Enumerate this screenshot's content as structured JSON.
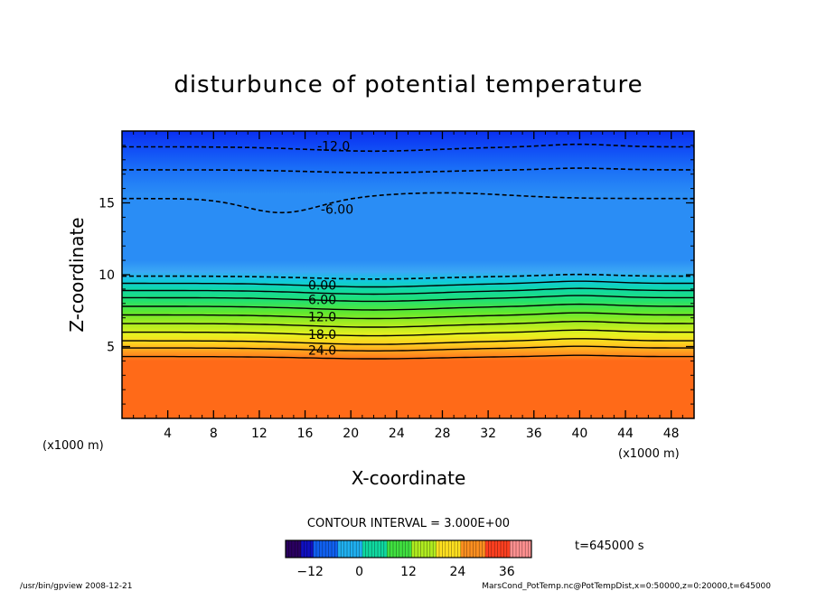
{
  "chart_data": {
    "type": "heatmap",
    "title": "disturbunce of potential temperature",
    "xlabel": "X-coordinate",
    "ylabel": "Z-coordinate",
    "x_unit": "(x1000 m)",
    "y_unit": "(x1000 m)",
    "xlim": [
      0,
      50
    ],
    "ylim": [
      0,
      20
    ],
    "x_ticks": [
      4,
      8,
      12,
      16,
      20,
      24,
      28,
      32,
      36,
      40,
      44,
      48
    ],
    "y_ticks": [
      5,
      10,
      15
    ],
    "contour_interval_text": "CONTOUR INTERVAL = 3.000E+00",
    "time_text": "t=645000 s",
    "contour_labels": [
      {
        "text": "-12.0",
        "x": 18.5,
        "z": 18.9
      },
      {
        "text": "-6.00",
        "x": 18.8,
        "z": 14.5
      },
      {
        "text": "0.00",
        "x": 17.5,
        "z": 9.2
      },
      {
        "text": "6.00",
        "x": 17.5,
        "z": 8.2
      },
      {
        "text": "12.0",
        "x": 17.5,
        "z": 7.0
      },
      {
        "text": "18.0",
        "x": 17.5,
        "z": 5.8
      },
      {
        "text": "24.0",
        "x": 17.5,
        "z": 4.7
      }
    ],
    "colorbar": {
      "range": [
        -18,
        42
      ],
      "ticks": [
        -12,
        0,
        12,
        24,
        36
      ]
    },
    "field_profile": [
      {
        "z": 0,
        "value": 33
      },
      {
        "z": 3.9,
        "value": 33
      },
      {
        "z": 4.3,
        "value": 27
      },
      {
        "z": 5.0,
        "value": 22
      },
      {
        "z": 6.0,
        "value": 17
      },
      {
        "z": 7.0,
        "value": 12
      },
      {
        "z": 8.0,
        "value": 7
      },
      {
        "z": 9.0,
        "value": 2
      },
      {
        "z": 10.0,
        "value": -2
      },
      {
        "z": 11.5,
        "value": -4
      },
      {
        "z": 14.0,
        "value": -5
      },
      {
        "z": 16.0,
        "value": -7
      },
      {
        "z": 17.5,
        "value": -10
      },
      {
        "z": 19.0,
        "value": -13
      },
      {
        "z": 20.0,
        "value": -15
      }
    ]
  },
  "footer": {
    "left": "/usr/bin/gpview  2008-12-21",
    "right": "MarsCond_PotTemp.nc@PotTempDist,x=0:50000,z=0:20000,t=645000"
  }
}
